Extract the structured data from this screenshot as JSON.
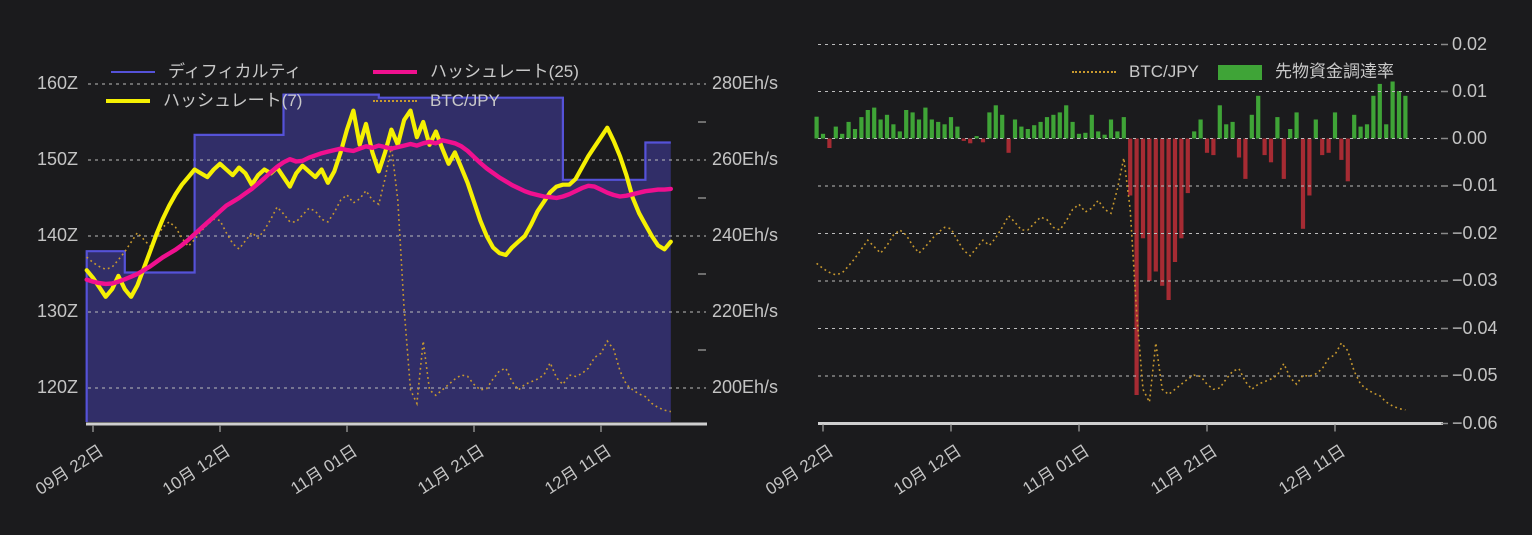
{
  "page": {
    "background": "#1b1b1d"
  },
  "colors": {
    "difficulty_line": "#5552d8",
    "difficulty_fill": "#312e68",
    "hashrate7": "#f5f002",
    "hashrate25": "#f0108f",
    "btcjpy": "#c8992e",
    "funding_positive": "#3fa437",
    "funding_negative": "#a62b33",
    "gridline": "#bcbcbc",
    "axis_line": "#cfcfcf",
    "tick_text": "#c4c4c4"
  },
  "left_chart": {
    "legend": [
      {
        "label": "ディフィカルティ",
        "swatch": "line-thin",
        "color": "#5552d8"
      },
      {
        "label": "ハッシュレート(25)",
        "swatch": "line-thick",
        "color": "#f0108f"
      },
      {
        "label": "ハッシュレート(7)",
        "swatch": "line-thick",
        "color": "#f5f002"
      },
      {
        "label": "BTC/JPY",
        "swatch": "dotted",
        "color": "#c8992e"
      }
    ],
    "y_left_ticks": [
      "160Z",
      "150Z",
      "140Z",
      "130Z",
      "120Z"
    ],
    "y_right_ticks": [
      "280Eh/s",
      "260Eh/s",
      "240Eh/s",
      "220Eh/s",
      "200Eh/s"
    ],
    "x_ticks": [
      "09月 22日",
      "10月 12日",
      "11月 01日",
      "11月 21日",
      "12月 11日"
    ]
  },
  "right_chart": {
    "legend": [
      {
        "label": "BTC/JPY",
        "swatch": "dotted",
        "color": "#c8992e"
      },
      {
        "label": "先物資金調達率",
        "swatch": "box",
        "color": "#3fa437"
      }
    ],
    "y_ticks": [
      "0.02",
      "0.01",
      "0.00",
      "−0.01",
      "−0.02",
      "−0.03",
      "−0.04",
      "−0.05",
      "−0.06"
    ],
    "x_ticks": [
      "09月 22日",
      "10月 12日",
      "11月 01日",
      "11月 21日",
      "12月 11日"
    ]
  },
  "chart_data": [
    {
      "type": "line",
      "title": "",
      "x_tick_labels": [
        "09月 22日",
        "10月 12日",
        "11月 01日",
        "11月 21日",
        "12月 11日"
      ],
      "x_tick_day_index": [
        1,
        21,
        41,
        61,
        81
      ],
      "days_total": 93,
      "axes": {
        "left": {
          "ticks": [
            "160Z",
            "150Z",
            "140Z",
            "130Z",
            "120Z"
          ],
          "tick_values": [
            160,
            150,
            140,
            130,
            120
          ],
          "unit": "Z (zetta-hash difficulty)"
        },
        "right": {
          "ticks": [
            "280Eh/s",
            "260Eh/s",
            "240Eh/s",
            "220Eh/s",
            "200Eh/s"
          ],
          "tick_values": [
            280,
            260,
            240,
            220,
            200
          ],
          "unit": "Eh/s"
        }
      },
      "grid": true,
      "legend_position": "top-inside",
      "series": [
        {
          "name": "ディフィカルティ",
          "axis": "left",
          "style": "step-area",
          "segments": [
            {
              "days": [
                0,
                5
              ],
              "value": 138.0
            },
            {
              "days": [
                6,
                16
              ],
              "value": 135.2
            },
            {
              "days": [
                17,
                30
              ],
              "value": 153.3
            },
            {
              "days": [
                31,
                45
              ],
              "value": 158.6
            },
            {
              "days": [
                46,
                74
              ],
              "value": 158.2
            },
            {
              "days": [
                75,
                87
              ],
              "value": 147.4
            },
            {
              "days": [
                88,
                92
              ],
              "value": 152.3
            }
          ]
        },
        {
          "name": "ハッシュレート(7)",
          "axis": "right",
          "style": "line",
          "values": [
            231,
            229,
            226.5,
            224,
            226,
            229.5,
            226,
            224,
            227,
            231.5,
            236,
            240.5,
            244.5,
            248,
            251,
            253.5,
            255.5,
            257.5,
            256.5,
            255.5,
            257.5,
            259,
            257.5,
            256,
            258,
            256.5,
            253.5,
            256,
            257.5,
            256.5,
            258,
            255.5,
            253,
            256.5,
            258.5,
            257,
            255.5,
            257.5,
            254,
            257,
            262,
            268,
            273,
            264,
            269.5,
            262,
            257,
            262,
            268,
            264,
            270.5,
            273,
            266,
            270,
            264,
            267.5,
            263,
            259,
            262,
            258,
            254,
            249,
            244,
            240,
            237,
            235.5,
            235,
            237,
            238.5,
            240,
            243,
            246.5,
            249,
            251.5,
            253,
            253.5,
            253.5,
            255,
            258,
            261,
            263.5,
            266,
            268.5,
            265,
            261,
            256,
            250,
            246,
            243,
            240,
            237.5,
            236.5,
            238.5
          ]
        },
        {
          "name": "ハッシュレート(25)",
          "axis": "right",
          "style": "line",
          "values": [
            228.5,
            228,
            227.6,
            227.4,
            227.5,
            228,
            228.6,
            229.3,
            230,
            231,
            232,
            233.2,
            234.4,
            235.4,
            236.4,
            237.6,
            239,
            240.5,
            242,
            243.5,
            245,
            246.5,
            248,
            249,
            250,
            251.2,
            252.4,
            253.8,
            255.2,
            256.8,
            258.2,
            259.4,
            260.2,
            259.6,
            259.8,
            260.6,
            261.2,
            261.8,
            262.2,
            262.6,
            263,
            262.6,
            262.4,
            263,
            263.6,
            263.2,
            263.8,
            263.4,
            263,
            263.4,
            263.8,
            264.2,
            263.8,
            264.4,
            264.8,
            264.4,
            265.2,
            264.8,
            264.4,
            263.6,
            262.4,
            260.8,
            259.2,
            257.8,
            256.6,
            255.4,
            254.4,
            253.4,
            252.6,
            251.8,
            251.2,
            250.8,
            250.4,
            250.2,
            250,
            250.4,
            251,
            251.8,
            252.6,
            253.2,
            253,
            252.2,
            251.4,
            250.8,
            250.4,
            250.6,
            251,
            251.4,
            251.8,
            252,
            252.2,
            252.2,
            252.4
          ]
        },
        {
          "name": "BTC/JPY",
          "axis": "overlay-normalized",
          "style": "dotted",
          "values": [
            0.59,
            0.57,
            0.555,
            0.545,
            0.553,
            0.58,
            0.61,
            0.645,
            0.68,
            0.655,
            0.63,
            0.66,
            0.7,
            0.72,
            0.7,
            0.66,
            0.63,
            0.655,
            0.685,
            0.71,
            0.73,
            0.725,
            0.68,
            0.64,
            0.62,
            0.65,
            0.68,
            0.66,
            0.69,
            0.73,
            0.775,
            0.75,
            0.72,
            0.72,
            0.745,
            0.77,
            0.76,
            0.73,
            0.72,
            0.755,
            0.8,
            0.82,
            0.79,
            0.805,
            0.835,
            0.8,
            0.785,
            0.88,
            1.0,
            0.8,
            0.4,
            0.1,
            0.05,
            0.28,
            0.1,
            0.08,
            0.1,
            0.12,
            0.14,
            0.155,
            0.15,
            0.12,
            0.1,
            0.105,
            0.14,
            0.17,
            0.18,
            0.13,
            0.1,
            0.12,
            0.13,
            0.14,
            0.155,
            0.2,
            0.145,
            0.12,
            0.155,
            0.15,
            0.16,
            0.18,
            0.22,
            0.235,
            0.28,
            0.25,
            0.17,
            0.12,
            0.1,
            0.085,
            0.075,
            0.05,
            0.035,
            0.025,
            0.02
          ]
        }
      ]
    },
    {
      "type": "bar",
      "title": "",
      "x_tick_labels": [
        "09月 22日",
        "10月 12日",
        "11月 01日",
        "11月 21日",
        "12月 11日"
      ],
      "x_tick_day_index": [
        1,
        21,
        41,
        61,
        81
      ],
      "days_total": 93,
      "axes": {
        "right": {
          "ticks": [
            "0.02",
            "0.01",
            "0.00",
            "−0.01",
            "−0.02",
            "−0.03",
            "−0.04",
            "−0.05",
            "−0.06"
          ],
          "tick_values": [
            0.02,
            0.01,
            0.0,
            -0.01,
            -0.02,
            -0.03,
            -0.04,
            -0.05,
            -0.06
          ],
          "unit": "funding rate"
        }
      },
      "grid": true,
      "legend_position": "top-inside",
      "series": [
        {
          "name": "先物資金調達率",
          "style": "bar",
          "values": [
            0.0046,
            0.001,
            -0.002,
            0.0025,
            0.001,
            0.0035,
            0.002,
            0.0045,
            0.006,
            0.0065,
            0.004,
            0.005,
            0.003,
            0.0015,
            0.006,
            0.0055,
            0.004,
            0.0065,
            0.004,
            0.0035,
            0.003,
            0.0045,
            0.0025,
            -0.0005,
            -0.001,
            0.0005,
            -0.0008,
            0.0055,
            0.007,
            0.005,
            -0.003,
            0.004,
            0.0025,
            0.002,
            0.0028,
            0.0035,
            0.0045,
            0.005,
            0.0055,
            0.007,
            0.0035,
            0.001,
            0.0012,
            0.005,
            0.0015,
            0.0008,
            0.004,
            0.0015,
            0.0045,
            -0.012,
            -0.054,
            -0.021,
            -0.03,
            -0.028,
            -0.031,
            -0.034,
            -0.026,
            -0.021,
            -0.0115,
            0.0015,
            0.004,
            -0.003,
            -0.0035,
            0.007,
            0.003,
            0.0035,
            -0.004,
            -0.0085,
            0.005,
            0.009,
            -0.0035,
            -0.005,
            0.0045,
            -0.0085,
            0.002,
            0.0055,
            -0.019,
            -0.012,
            0.004,
            -0.0035,
            -0.003,
            0.0055,
            -0.0045,
            -0.009,
            0.005,
            0.0025,
            0.003,
            0.009,
            0.0115,
            0.003,
            0.012,
            0.01,
            0.009
          ]
        },
        {
          "name": "BTC/JPY",
          "style": "dotted",
          "axis": "overlay-normalized",
          "values": [
            0.59,
            0.57,
            0.555,
            0.545,
            0.553,
            0.58,
            0.61,
            0.645,
            0.68,
            0.655,
            0.63,
            0.66,
            0.7,
            0.72,
            0.7,
            0.66,
            0.63,
            0.655,
            0.685,
            0.71,
            0.73,
            0.725,
            0.68,
            0.64,
            0.62,
            0.65,
            0.68,
            0.66,
            0.69,
            0.73,
            0.775,
            0.75,
            0.72,
            0.72,
            0.745,
            0.77,
            0.76,
            0.73,
            0.72,
            0.755,
            0.8,
            0.82,
            0.79,
            0.805,
            0.835,
            0.8,
            0.785,
            0.88,
            1.0,
            0.8,
            0.4,
            0.1,
            0.05,
            0.28,
            0.1,
            0.08,
            0.1,
            0.12,
            0.14,
            0.155,
            0.15,
            0.12,
            0.1,
            0.105,
            0.14,
            0.17,
            0.18,
            0.13,
            0.1,
            0.12,
            0.13,
            0.14,
            0.155,
            0.2,
            0.145,
            0.12,
            0.155,
            0.15,
            0.16,
            0.18,
            0.22,
            0.235,
            0.28,
            0.25,
            0.17,
            0.12,
            0.1,
            0.085,
            0.075,
            0.05,
            0.035,
            0.025,
            0.02
          ]
        }
      ]
    }
  ]
}
